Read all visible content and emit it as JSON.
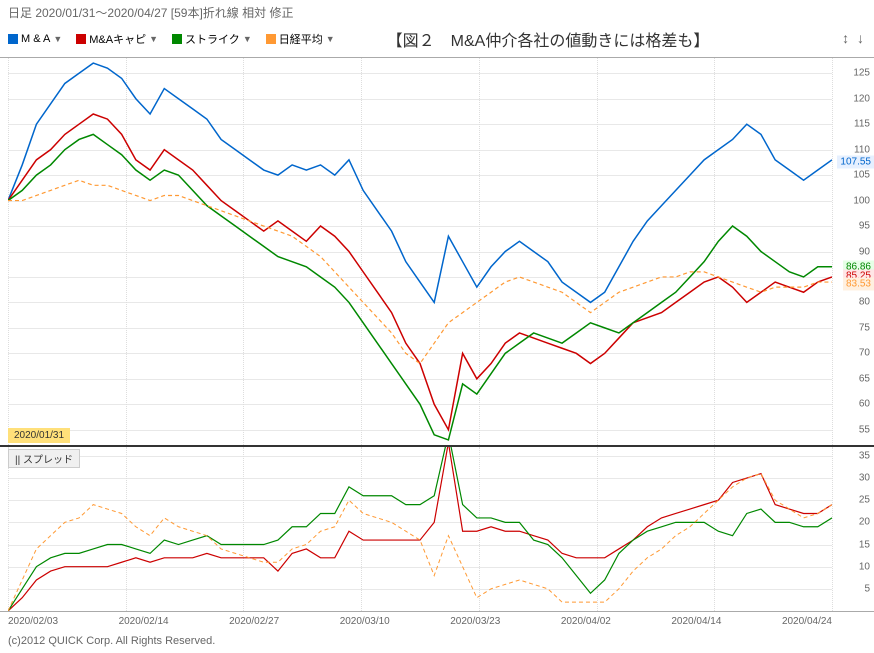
{
  "header": "日足  2020/01/31～2020/04/27 [59本]折れ線 相対 修正",
  "title": "【図２　M&A仲介各社の値動きには格差も】",
  "arrows": "↕ ↓",
  "legend": [
    {
      "label": "M & A",
      "color": "#0066cc",
      "tri": "▼"
    },
    {
      "label": "M&Aキャピ",
      "color": "#cc0000",
      "tri": "▼"
    },
    {
      "label": "ストライク",
      "color": "#008800",
      "tri": "▼"
    },
    {
      "label": "日経平均",
      "color": "#ff9933",
      "tri": "▼"
    }
  ],
  "date_badge": "2020/01/31",
  "spread_badge": "|| スプレッド",
  "copyright": "(c)2012 QUICK Corp. All Rights Reserved.",
  "main_chart": {
    "type": "line",
    "ylim": [
      52,
      128
    ],
    "yticks": [
      55,
      60,
      65,
      70,
      75,
      80,
      85,
      90,
      95,
      100,
      105,
      110,
      115,
      120,
      125
    ],
    "end_markers": [
      {
        "value": 107.55,
        "color": "#0066cc",
        "bg": "#e6f0ff"
      },
      {
        "value": 86.86,
        "color": "#008800",
        "bg": "#e6ffe6"
      },
      {
        "value": 85.25,
        "color": "#cc0000",
        "bg": "#ffe6e6"
      },
      {
        "value": 83.53,
        "color": "#ff9933",
        "bg": "#fff0e0"
      }
    ],
    "series": [
      {
        "color": "#0066cc",
        "width": 1.5,
        "dash": "",
        "data": [
          100,
          107,
          115,
          119,
          123,
          125,
          127,
          126,
          124,
          120,
          117,
          122,
          120,
          118,
          116,
          112,
          110,
          108,
          106,
          105,
          107,
          106,
          107,
          105,
          108,
          102,
          98,
          94,
          88,
          84,
          80,
          93,
          88,
          83,
          87,
          90,
          92,
          90,
          88,
          84,
          82,
          80,
          82,
          87,
          92,
          96,
          99,
          102,
          105,
          108,
          110,
          112,
          115,
          113,
          108,
          106,
          104,
          106,
          108
        ]
      },
      {
        "color": "#cc0000",
        "width": 1.5,
        "dash": "",
        "data": [
          100,
          104,
          108,
          110,
          113,
          115,
          117,
          116,
          113,
          108,
          106,
          110,
          108,
          106,
          103,
          100,
          98,
          96,
          94,
          96,
          94,
          92,
          95,
          93,
          90,
          86,
          82,
          78,
          72,
          68,
          60,
          55,
          70,
          65,
          68,
          72,
          74,
          73,
          72,
          71,
          70,
          68,
          70,
          73,
          76,
          77,
          78,
          80,
          82,
          84,
          85,
          83,
          80,
          82,
          84,
          83,
          82,
          84,
          85
        ]
      },
      {
        "color": "#008800",
        "width": 1.5,
        "dash": "",
        "data": [
          100,
          102,
          105,
          107,
          110,
          112,
          113,
          111,
          109,
          106,
          104,
          106,
          105,
          102,
          99,
          97,
          95,
          93,
          91,
          89,
          88,
          87,
          85,
          83,
          80,
          76,
          72,
          68,
          64,
          60,
          54,
          53,
          64,
          62,
          66,
          70,
          72,
          74,
          73,
          72,
          74,
          76,
          75,
          74,
          76,
          78,
          80,
          82,
          85,
          88,
          92,
          95,
          93,
          90,
          88,
          86,
          85,
          87,
          87
        ]
      },
      {
        "color": "#ff9933",
        "width": 1.2,
        "dash": "4,3",
        "data": [
          100,
          100,
          101,
          102,
          103,
          104,
          103,
          103,
          102,
          101,
          100,
          101,
          101,
          100,
          99,
          98,
          97,
          96,
          95,
          94,
          93,
          91,
          89,
          86,
          83,
          80,
          77,
          74,
          70,
          68,
          72,
          76,
          78,
          80,
          82,
          84,
          85,
          84,
          83,
          82,
          80,
          78,
          80,
          82,
          83,
          84,
          85,
          85,
          86,
          86,
          85,
          84,
          83,
          82,
          83,
          83,
          83,
          84,
          84
        ]
      }
    ]
  },
  "sub_chart": {
    "type": "line",
    "ylim": [
      0,
      37
    ],
    "yticks": [
      5,
      10,
      15,
      20,
      25,
      30,
      35
    ],
    "series": [
      {
        "color": "#cc0000",
        "width": 1.2,
        "dash": "",
        "data": [
          0,
          3,
          7,
          9,
          10,
          10,
          10,
          10,
          11,
          12,
          11,
          12,
          12,
          12,
          13,
          12,
          12,
          12,
          12,
          9,
          13,
          14,
          12,
          12,
          18,
          16,
          16,
          16,
          16,
          16,
          20,
          38,
          18,
          18,
          19,
          18,
          18,
          17,
          16,
          13,
          12,
          12,
          12,
          14,
          16,
          19,
          21,
          22,
          23,
          24,
          25,
          29,
          30,
          31,
          24,
          23,
          22,
          22,
          24
        ]
      },
      {
        "color": "#008800",
        "width": 1.2,
        "dash": "",
        "data": [
          0,
          5,
          10,
          12,
          13,
          13,
          14,
          15,
          15,
          14,
          13,
          16,
          15,
          16,
          17,
          15,
          15,
          15,
          15,
          16,
          19,
          19,
          22,
          22,
          28,
          26,
          26,
          26,
          24,
          24,
          26,
          40,
          24,
          21,
          21,
          20,
          20,
          16,
          15,
          12,
          8,
          4,
          7,
          13,
          16,
          18,
          19,
          20,
          20,
          20,
          18,
          17,
          22,
          23,
          20,
          20,
          19,
          19,
          21
        ]
      },
      {
        "color": "#ff9933",
        "width": 1.0,
        "dash": "4,3",
        "data": [
          0,
          7,
          14,
          17,
          20,
          21,
          24,
          23,
          22,
          19,
          17,
          21,
          19,
          18,
          17,
          14,
          13,
          12,
          11,
          11,
          14,
          15,
          18,
          19,
          25,
          22,
          21,
          20,
          18,
          16,
          8,
          17,
          10,
          3,
          5,
          6,
          7,
          6,
          5,
          2,
          2,
          2,
          2,
          5,
          9,
          12,
          14,
          17,
          19,
          22,
          25,
          28,
          30,
          31,
          25,
          23,
          21,
          22,
          24
        ]
      }
    ]
  },
  "x_labels": [
    "2020/02/03",
    "2020/02/14",
    "2020/02/27",
    "2020/03/10",
    "2020/03/23",
    "2020/04/02",
    "2020/04/14",
    "2020/04/24"
  ],
  "grid_color": "#e8e8e8",
  "bg_color": "#ffffff"
}
